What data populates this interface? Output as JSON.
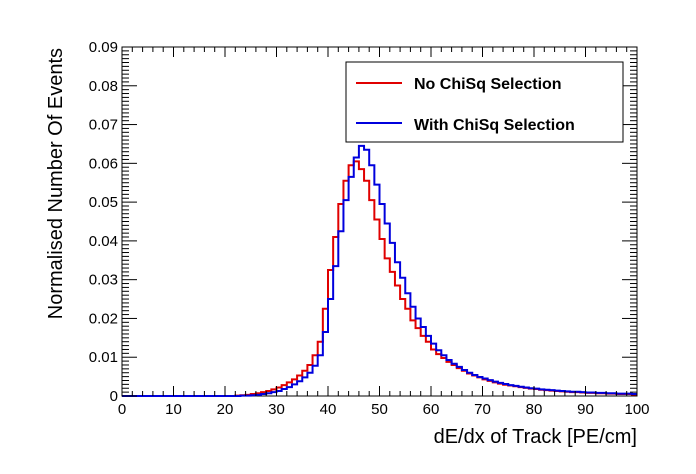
{
  "chart_data": {
    "type": "line",
    "style": "step-histogram",
    "xlabel": "dE/dx of Track [PE/cm]",
    "ylabel": "Normalised Number Of Events",
    "xlim": [
      0,
      100
    ],
    "ylim": [
      0,
      0.09
    ],
    "x_ticks": [
      "0",
      "10",
      "20",
      "30",
      "40",
      "50",
      "60",
      "70",
      "80",
      "90",
      "100"
    ],
    "y_ticks": [
      "0",
      "0.01",
      "0.02",
      "0.03",
      "0.04",
      "0.05",
      "0.06",
      "0.07",
      "0.08",
      "0.09"
    ],
    "grid": false,
    "legend_position": "top-right",
    "bin_width": 1,
    "bin_starts": [
      0,
      1,
      2,
      3,
      4,
      5,
      6,
      7,
      8,
      9,
      10,
      11,
      12,
      13,
      14,
      15,
      16,
      17,
      18,
      19,
      20,
      21,
      22,
      23,
      24,
      25,
      26,
      27,
      28,
      29,
      30,
      31,
      32,
      33,
      34,
      35,
      36,
      37,
      38,
      39,
      40,
      41,
      42,
      43,
      44,
      45,
      46,
      47,
      48,
      49,
      50,
      51,
      52,
      53,
      54,
      55,
      56,
      57,
      58,
      59,
      60,
      61,
      62,
      63,
      64,
      65,
      66,
      67,
      68,
      69,
      70,
      71,
      72,
      73,
      74,
      75,
      76,
      77,
      78,
      79,
      80,
      81,
      82,
      83,
      84,
      85,
      86,
      87,
      88,
      89,
      90,
      91,
      92,
      93,
      94,
      95,
      96,
      97,
      98,
      99
    ],
    "series": [
      {
        "name": "No ChiSq Selection",
        "color": "#e00000",
        "values": [
          0,
          0,
          0,
          0,
          0,
          0,
          0,
          0,
          0,
          0,
          0,
          0,
          0,
          0,
          0,
          0,
          0,
          0,
          0,
          0,
          0,
          0,
          0.0001,
          0.0002,
          0.0003,
          0.0005,
          0.0007,
          0.001,
          0.0013,
          0.0017,
          0.0022,
          0.0028,
          0.0035,
          0.0043,
          0.0053,
          0.0065,
          0.008,
          0.0105,
          0.014,
          0.0225,
          0.0325,
          0.041,
          0.0495,
          0.0555,
          0.0595,
          0.0605,
          0.0585,
          0.0555,
          0.0505,
          0.0455,
          0.0405,
          0.0355,
          0.032,
          0.0285,
          0.025,
          0.0225,
          0.0195,
          0.0175,
          0.0155,
          0.014,
          0.012,
          0.0108,
          0.0098,
          0.0088,
          0.008,
          0.0072,
          0.0065,
          0.0058,
          0.0053,
          0.0048,
          0.0043,
          0.0039,
          0.0035,
          0.0032,
          0.0029,
          0.0027,
          0.0025,
          0.0023,
          0.0021,
          0.0019,
          0.0018,
          0.0016,
          0.0015,
          0.0014,
          0.0013,
          0.0012,
          0.0011,
          0.001,
          0.001,
          0.0009,
          0.0008,
          0.0008,
          0.0007,
          0.0007,
          0.0006,
          0.0006,
          0.0005,
          0.0005,
          0.0005,
          0.0004
        ]
      },
      {
        "name": "With ChiSq Selection",
        "color": "#0000dd",
        "values": [
          0,
          0,
          0,
          0,
          0,
          0,
          0,
          0,
          0,
          0,
          0,
          0,
          0,
          0,
          0,
          0,
          0,
          0,
          0,
          0,
          0,
          0,
          0,
          0.0001,
          0.0001,
          0.0002,
          0.0003,
          0.0005,
          0.0007,
          0.001,
          0.0013,
          0.0018,
          0.0023,
          0.003,
          0.0038,
          0.0048,
          0.006,
          0.0078,
          0.0105,
          0.0165,
          0.025,
          0.0335,
          0.0425,
          0.0505,
          0.0565,
          0.0615,
          0.0645,
          0.0635,
          0.0595,
          0.0545,
          0.0495,
          0.0445,
          0.0395,
          0.0345,
          0.0305,
          0.0265,
          0.023,
          0.02,
          0.0178,
          0.0155,
          0.0135,
          0.0118,
          0.0105,
          0.0093,
          0.0083,
          0.0075,
          0.0067,
          0.006,
          0.0054,
          0.0049,
          0.0045,
          0.0041,
          0.0037,
          0.0034,
          0.0031,
          0.0028,
          0.0026,
          0.0024,
          0.0022,
          0.002,
          0.0019,
          0.0017,
          0.0016,
          0.0015,
          0.0014,
          0.0013,
          0.0012,
          0.0011,
          0.0011,
          0.001,
          0.0009,
          0.0009,
          0.0008,
          0.0008,
          0.0007,
          0.0007,
          0.0006,
          0.0006,
          0.0006,
          0.0005
        ]
      }
    ]
  }
}
